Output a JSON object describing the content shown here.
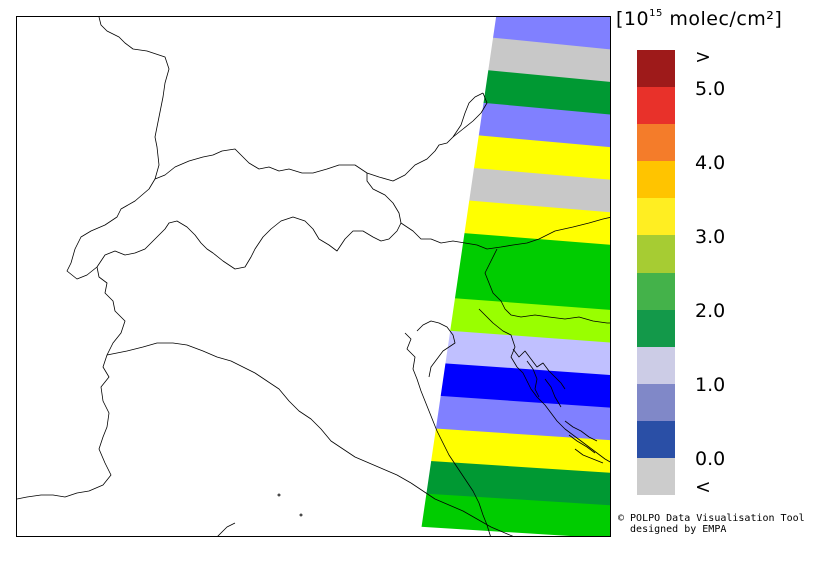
{
  "legend": {
    "unit_prefix": "[10",
    "unit_exp": "15",
    "unit_suffix": " molec/cm²]",
    "ticks": [
      ">",
      "5.0",
      "4.0",
      "3.0",
      "2.0",
      "1.0",
      "0.0",
      "<"
    ],
    "classes": [
      {
        "color": "#9e1a1a"
      },
      {
        "color": "#e8312a"
      },
      {
        "color": "#f47c2a"
      },
      {
        "color": "#ffc400"
      },
      {
        "color": "#ffee22"
      },
      {
        "color": "#a6cc33"
      },
      {
        "color": "#44b24a"
      },
      {
        "color": "#13994a"
      },
      {
        "color": "#cccce6"
      },
      {
        "color": "#8088c8"
      },
      {
        "color": "#2a4fa6"
      },
      {
        "color": "#cccccc"
      }
    ]
  },
  "swath_colors": {
    "lightblue": "#8080ff",
    "gray": "#c8c8c8",
    "green": "#009933",
    "yellow": "#ffff00",
    "lime": "#00cc00",
    "yellowgreen": "#99ff00",
    "lavender": "#c0c0ff",
    "blue": "#0000ff"
  },
  "swath_bands": [
    "lightblue",
    "gray",
    "green",
    "lightblue",
    "yellow",
    "gray",
    "yellow",
    "lime",
    "lime",
    "yellowgreen",
    "lavender",
    "blue",
    "lightblue",
    "yellow",
    "green",
    "lime"
  ],
  "credit": {
    "line1": "© POLPO Data Visualisation Tool",
    "line2": "  designed by EMPA"
  }
}
